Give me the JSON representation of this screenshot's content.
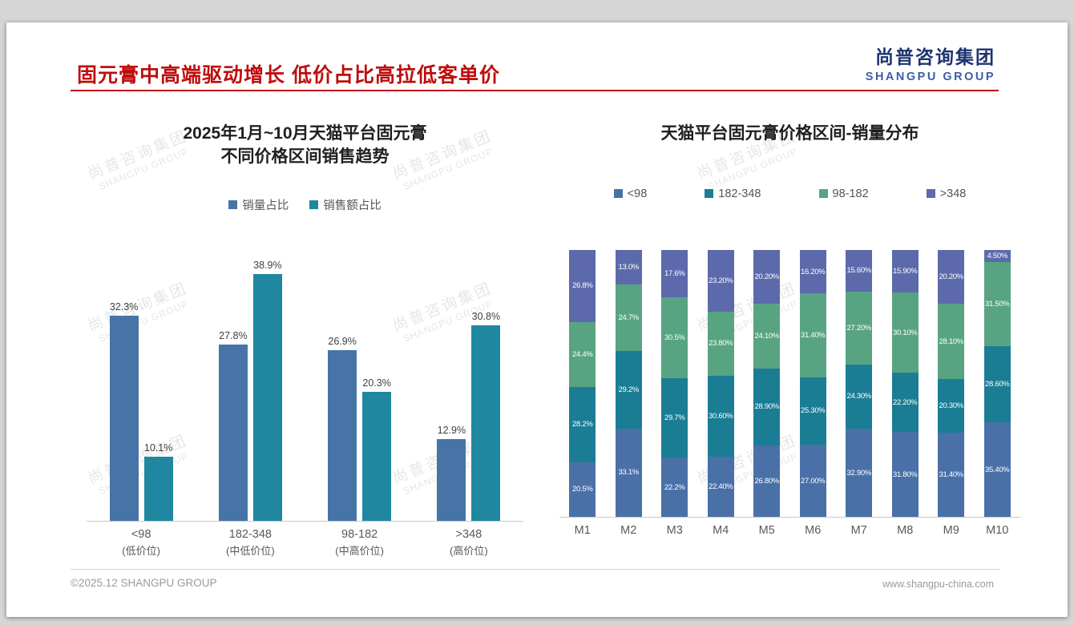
{
  "page": {
    "title": "固元膏中高端驱动增长 低价占比高拉低客单价",
    "logo": {
      "cn": "尚普咨询集团",
      "en": "SHANGPU GROUP"
    },
    "watermark": {
      "cn": "尚普咨询集团",
      "en": "SHANGPU GROUP"
    },
    "footer": {
      "left": "©2025.12 SHANGPU GROUP",
      "right": "www.shangpu-china.com"
    }
  },
  "colors": {
    "title_red": "#bf0d0d",
    "logo_navy": "#1d3470",
    "logo_blue": "#3c5da8",
    "left_series": [
      "#4674a6",
      "#1f87a0"
    ],
    "stack_series": [
      "#4a70a8",
      "#1b7d94",
      "#58a482",
      "#5c6aac"
    ]
  },
  "chart_data": [
    {
      "type": "bar",
      "title": "2025年1月~10月天猫平台固元膏 不同价格区间销售趋势",
      "title_lines": [
        "2025年1月~10月天猫平台固元膏",
        "不同价格区间销售趋势"
      ],
      "categories": [
        "<98",
        "182-348",
        "98-182",
        ">348"
      ],
      "category_sublabels": [
        "(低价位)",
        "(中低价位)",
        "(中高价位)",
        "(高价位)"
      ],
      "series": [
        {
          "name": "销量占比",
          "values": [
            32.3,
            27.8,
            26.9,
            12.9
          ],
          "labels": [
            "32.3%",
            "27.8%",
            "26.9%",
            "12.9%"
          ]
        },
        {
          "name": "销售额占比",
          "values": [
            10.1,
            38.9,
            20.3,
            30.8
          ],
          "labels": [
            "10.1%",
            "38.9%",
            "20.3%",
            "30.8%"
          ]
        }
      ],
      "ylim": [
        0,
        42
      ],
      "unit": "percent",
      "grid": false,
      "legend_position": "top"
    },
    {
      "type": "bar",
      "subtype": "stacked-100pct",
      "title": "天猫平台固元膏价格区间-销量分布",
      "categories": [
        "M1",
        "M2",
        "M3",
        "M4",
        "M5",
        "M6",
        "M7",
        "M8",
        "M9",
        "M10"
      ],
      "series": [
        {
          "name": "<98",
          "values": [
            20.5,
            33.1,
            22.2,
            22.4,
            26.8,
            27.0,
            32.9,
            31.8,
            31.4,
            35.4
          ],
          "labels": [
            "20.5%",
            "33.1%",
            "22.2%",
            "22.40%",
            "26.80%",
            "27.00%",
            "32.90%",
            "31.80%",
            "31.40%",
            "35.40%"
          ]
        },
        {
          "name": "182-348",
          "values": [
            28.2,
            29.2,
            29.7,
            30.6,
            28.9,
            25.3,
            24.3,
            22.2,
            20.3,
            28.6
          ],
          "labels": [
            "28.2%",
            "29.2%",
            "29.7%",
            "30.60%",
            "28.90%",
            "25.30%",
            "24.30%",
            "22.20%",
            "20.30%",
            "28.60%"
          ]
        },
        {
          "name": "98-182",
          "values": [
            24.4,
            24.7,
            30.5,
            23.8,
            24.1,
            31.4,
            27.2,
            30.1,
            28.1,
            31.5
          ],
          "labels": [
            "24.4%",
            "24.7%",
            "30.5%",
            "23.80%",
            "24.10%",
            "31.40%",
            "27.20%",
            "30.10%",
            "28.10%",
            "31.50%"
          ]
        },
        {
          "name": ">348",
          "values": [
            26.8,
            13.0,
            17.6,
            23.2,
            20.2,
            16.2,
            15.6,
            15.9,
            20.2,
            4.5
          ],
          "labels": [
            "26.8%",
            "13.0%",
            "17.6%",
            "23.20%",
            "20.20%",
            "16.20%",
            "15.60%",
            "15.90%",
            "20.20%",
            "4.50%"
          ]
        }
      ],
      "ylim": [
        0,
        100
      ],
      "unit": "percent",
      "grid": false,
      "legend_position": "top"
    }
  ]
}
